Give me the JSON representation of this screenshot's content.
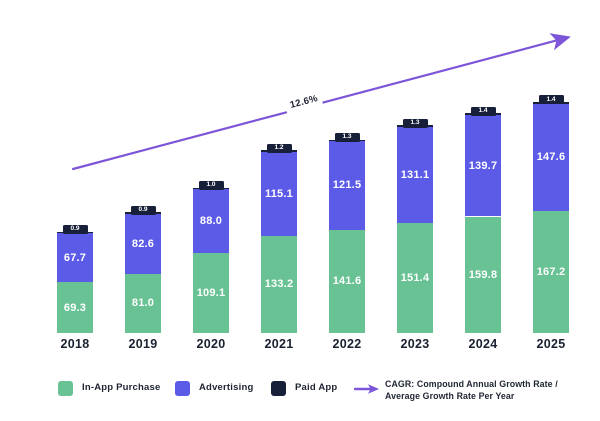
{
  "chart_data": {
    "type": "bar",
    "stacked": true,
    "title": "",
    "xlabel": "",
    "ylabel": "",
    "categories": [
      "2018",
      "2019",
      "2020",
      "2021",
      "2022",
      "2023",
      "2024",
      "2025"
    ],
    "series": [
      {
        "name": "In-App Purchase",
        "color": "#68C294",
        "values": [
          69.3,
          81.0,
          109.1,
          133.2,
          141.6,
          151.4,
          159.8,
          167.2
        ]
      },
      {
        "name": "Advertising",
        "color": "#5B5BE8",
        "values": [
          67.7,
          82.6,
          88.0,
          115.1,
          121.5,
          131.1,
          139.7,
          147.6
        ]
      },
      {
        "name": "Paid App",
        "color": "#172038",
        "values": [
          0.9,
          0.9,
          1.0,
          1.2,
          1.3,
          1.3,
          1.4,
          1.4
        ]
      }
    ],
    "annotation": {
      "cagr_value": "12.6%"
    },
    "ylim": [
      0,
      340
    ],
    "grid": false,
    "legend_position": "bottom"
  },
  "legend": {
    "items": [
      {
        "label": "In-App Purchase",
        "color": "#68C294"
      },
      {
        "label": "Advertising",
        "color": "#5B5BE8"
      },
      {
        "label": "Paid App",
        "color": "#172038"
      }
    ],
    "cagr_line1": "CAGR: Compound Annual Growth Rate /",
    "cagr_line2": "Average Growth Rate Per Year"
  },
  "colors": {
    "arrow": "#7C55D8",
    "text_dark": "#1E2432",
    "value_label": "#FFFFFF",
    "background": "#FFFFFF"
  }
}
